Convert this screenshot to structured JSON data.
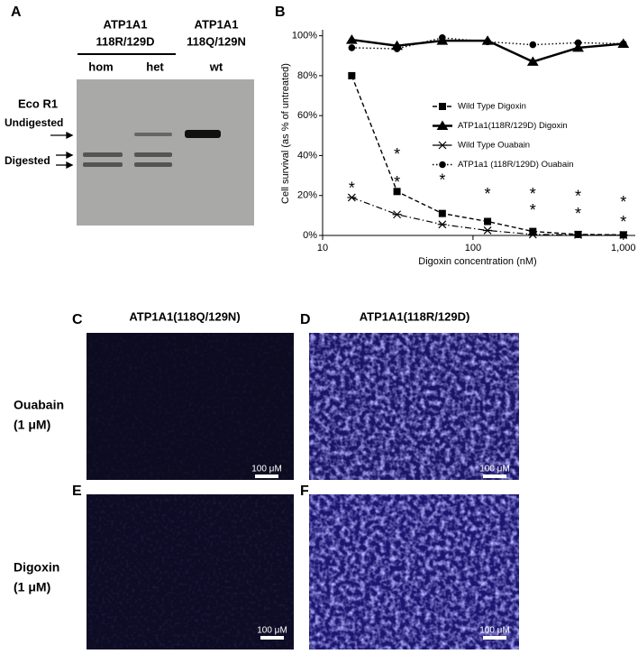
{
  "panel_a": {
    "label": "A",
    "groups": [
      {
        "gene": "ATP1A1",
        "variant": "118R/129D",
        "lanes": [
          "hom",
          "het"
        ]
      },
      {
        "gene": "ATP1A1",
        "variant": "118Q/129N",
        "lanes": [
          "wt"
        ]
      }
    ],
    "enzyme": "Eco R1",
    "bands": [
      "Undigested",
      "Digested"
    ]
  },
  "chart_data": {
    "type": "line",
    "panel_label": "B",
    "x_label": "Digoxin concentration (nM)",
    "y_label": "Cell survival (as % of untreated)",
    "x": [
      15.625,
      31.25,
      62.5,
      125,
      250,
      500,
      1000
    ],
    "xscale": "log",
    "xlim": [
      10,
      1200
    ],
    "xticks": [
      10,
      100,
      {
        "value": 1000,
        "label": "1,000"
      }
    ],
    "ylim": [
      0,
      103
    ],
    "yticks": [
      {
        "value": 0,
        "label": "0%"
      },
      {
        "value": 20,
        "label": "20%"
      },
      {
        "value": 40,
        "label": "40%"
      },
      {
        "value": 60,
        "label": "60%"
      },
      {
        "value": 80,
        "label": "80%"
      },
      {
        "value": 100,
        "label": "100%"
      }
    ],
    "legend": "right",
    "series": [
      {
        "name": "Wild Type Digoxin",
        "color": "#000000",
        "linestyle": "dashed",
        "marker": "square",
        "values": [
          80,
          22,
          11,
          7,
          2,
          0.5,
          0.3
        ]
      },
      {
        "name": "ATP1a1(118R/129D) Digoxin",
        "color": "#000000",
        "linestyle": "solid",
        "marker": "triangle",
        "values": [
          98,
          95,
          97.5,
          97.5,
          87,
          94,
          96
        ]
      },
      {
        "name": "Wild Type Ouabain",
        "color": "#000000",
        "linestyle": "dashdot",
        "marker": "star",
        "values": [
          19,
          10.5,
          5.5,
          2.5,
          0.5,
          0.3,
          0.2
        ]
      },
      {
        "name": "ATP1a1 (118R/129D) Ouabain",
        "color": "#000000",
        "linestyle": "dotted",
        "marker": "circle",
        "values": [
          94,
          93.5,
          99,
          97,
          95.5,
          96.5,
          96
        ]
      }
    ],
    "annotations": [
      {
        "text": "*",
        "x": 15.625,
        "y": 25
      },
      {
        "text": "*",
        "x": 31.25,
        "y": 42
      },
      {
        "text": "*",
        "x": 31.25,
        "y": 28
      },
      {
        "text": "*",
        "x": 62.5,
        "y": 29
      },
      {
        "text": "*",
        "x": 125,
        "y": 22
      },
      {
        "text": "*",
        "x": 250,
        "y": 22
      },
      {
        "text": "*",
        "x": 250,
        "y": 14
      },
      {
        "text": "*",
        "x": 500,
        "y": 21
      },
      {
        "text": "*",
        "x": 500,
        "y": 12
      },
      {
        "text": "*",
        "x": 1000,
        "y": 18
      },
      {
        "text": "*",
        "x": 1000,
        "y": 8
      }
    ]
  },
  "panels": [
    {
      "label": "C",
      "title": "ATP1A1(118Q/129N)"
    },
    {
      "label": "D",
      "title": "ATP1A1(118R/129D)"
    },
    {
      "label": "E"
    },
    {
      "label": "F"
    }
  ],
  "rows": [
    {
      "treatment": "Ouabain",
      "dose": "(1 μM)"
    },
    {
      "treatment": "Digoxin",
      "dose": "(1 μM)"
    }
  ],
  "scale_bar": "100 μM"
}
